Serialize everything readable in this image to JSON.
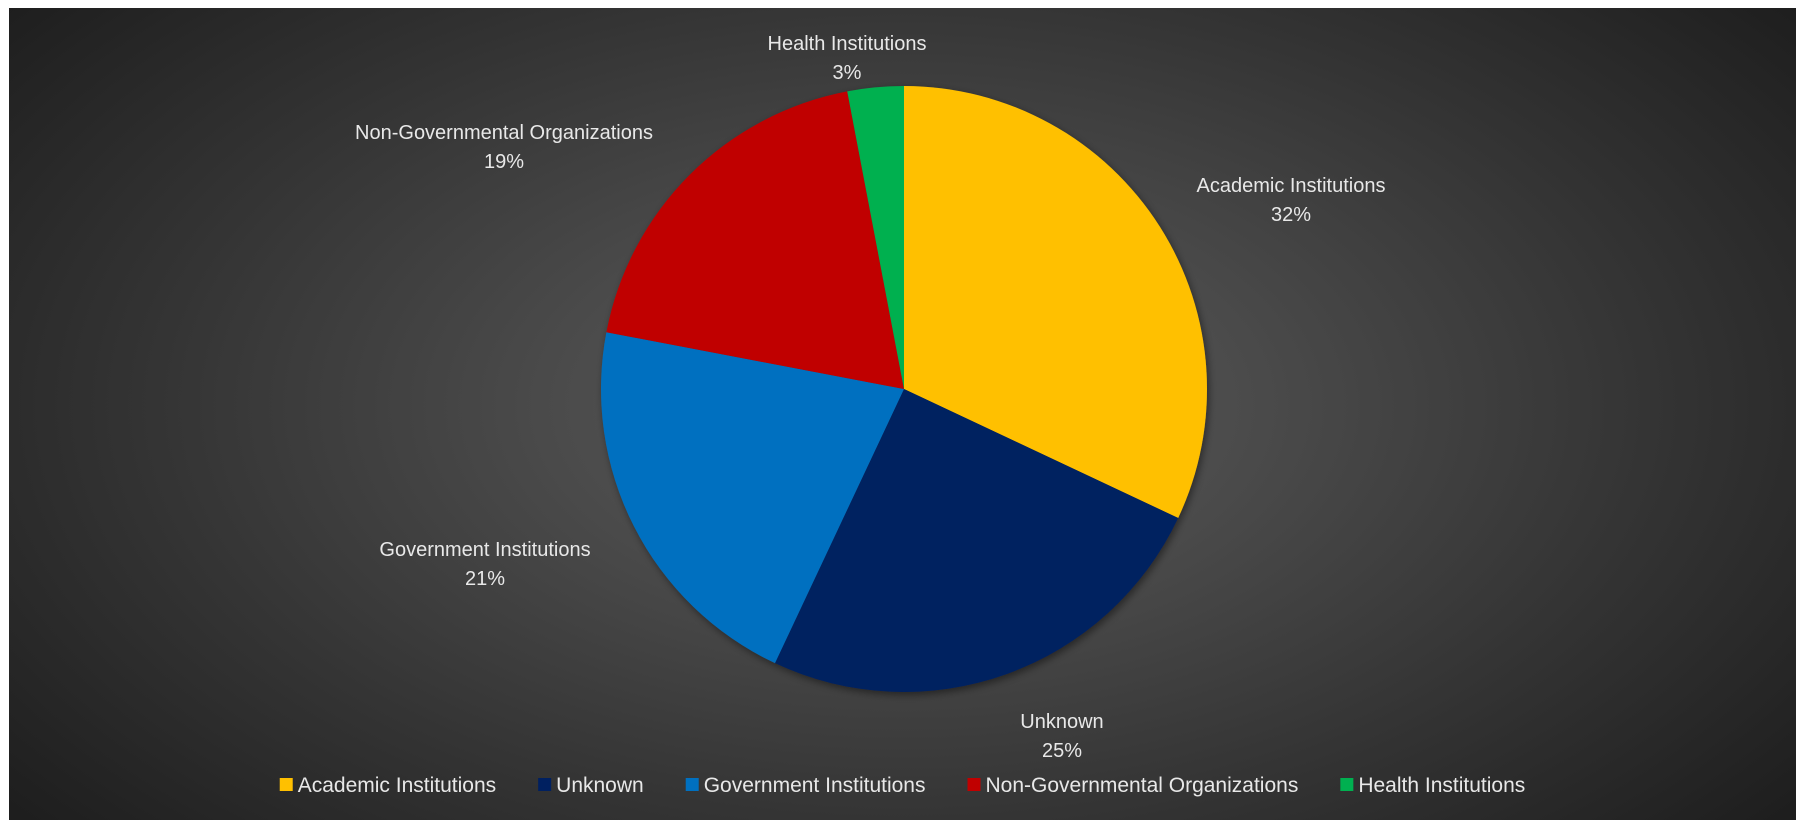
{
  "chart_data": {
    "type": "pie",
    "categories": [
      "Academic Institutions",
      "Unknown",
      "Government Institutions",
      "Non-Governmental Organizations",
      "Health Institutions"
    ],
    "values": [
      32,
      25,
      21,
      19,
      3
    ],
    "value_labels": [
      "32%",
      "25%",
      "21%",
      "19%",
      "3%"
    ],
    "colors": [
      "#FFC000",
      "#002060",
      "#0070C0",
      "#C00000",
      "#00B050"
    ],
    "legend_position": "bottom",
    "start_angle": "12 o'clock, clockwise"
  }
}
